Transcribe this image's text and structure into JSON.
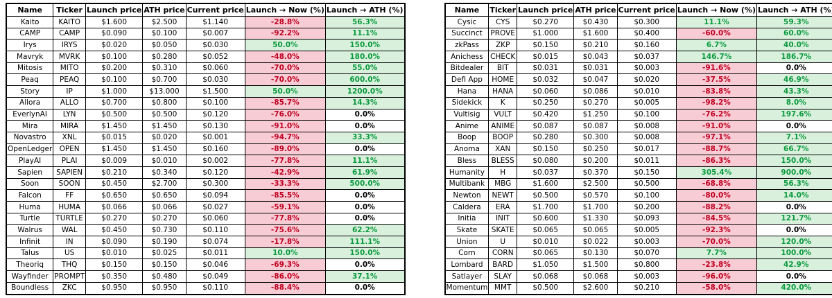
{
  "colors": {
    "negative_bg": "#f8ccd4",
    "negative_text": "#c00021",
    "positive_bg": "#d8f0dc",
    "positive_text": "#0b9a3e",
    "zero_text": "#000000",
    "border": "#000000"
  },
  "chart_data": [
    {
      "type": "table",
      "id": "left",
      "columns": [
        "Name",
        "Ticker",
        "Launch price",
        "ATH price",
        "Current price",
        "Launch → Now (%)",
        "Launch → ATH (%)"
      ],
      "rows": [
        [
          "Kaito",
          "KAITO",
          "$1.600",
          "$2.500",
          "$1.140",
          "-28.8%",
          "56.3%"
        ],
        [
          "CAMP",
          "CAMP",
          "$0.090",
          "$0.100",
          "$0.007",
          "-92.2%",
          "11.1%"
        ],
        [
          "Irys",
          "IRYS",
          "$0.020",
          "$0.050",
          "$0.030",
          "50.0%",
          "150.0%"
        ],
        [
          "Mavryk",
          "MVRK",
          "$0.100",
          "$0.280",
          "$0.052",
          "-48.0%",
          "180.0%"
        ],
        [
          "Mitosis",
          "MITO",
          "$0.200",
          "$0.310",
          "$0.060",
          "-70.0%",
          "55.0%"
        ],
        [
          "Peaq",
          "PEAQ",
          "$0.100",
          "$0.700",
          "$0.030",
          "-70.0%",
          "600.0%"
        ],
        [
          "Story",
          "IP",
          "$1.000",
          "$13.000",
          "$1.500",
          "50.0%",
          "1200.0%"
        ],
        [
          "Allora",
          "ALLO",
          "$0.700",
          "$0.800",
          "$0.100",
          "-85.7%",
          "14.3%"
        ],
        [
          "EverlynAI",
          "LYN",
          "$0.500",
          "$0.500",
          "$0.120",
          "-76.0%",
          "0.0%"
        ],
        [
          "Mira",
          "MIRA",
          "$1.450",
          "$1.450",
          "$0.130",
          "-91.0%",
          "0.0%"
        ],
        [
          "Novastro",
          "XNL",
          "$0.015",
          "$0.020",
          "$0.001",
          "-94.7%",
          "33.3%"
        ],
        [
          "OpenLedger",
          "OPEN",
          "$1.450",
          "$1.450",
          "$0.160",
          "-89.0%",
          "0.0%"
        ],
        [
          "PlayAI",
          "PLAI",
          "$0.009",
          "$0.010",
          "$0.002",
          "-77.8%",
          "11.1%"
        ],
        [
          "Sapien",
          "SAPIEN",
          "$0.210",
          "$0.340",
          "$0.120",
          "-42.9%",
          "61.9%"
        ],
        [
          "Soon",
          "SOON",
          "$0.450",
          "$2.700",
          "$0.300",
          "-33.3%",
          "500.0%"
        ],
        [
          "Falcon",
          "FF",
          "$0.650",
          "$0.650",
          "$0.094",
          "-85.5%",
          "0.0%"
        ],
        [
          "Huma",
          "HUMA",
          "$0.066",
          "$0.066",
          "$0.027",
          "-59.1%",
          "0.0%"
        ],
        [
          "Turtle",
          "TURTLE",
          "$0.270",
          "$0.270",
          "$0.060",
          "-77.8%",
          "0.0%"
        ],
        [
          "Walrus",
          "WAL",
          "$0.450",
          "$0.730",
          "$0.110",
          "-75.6%",
          "62.2%"
        ],
        [
          "Infinit",
          "IN",
          "$0.090",
          "$0.190",
          "$0.074",
          "-17.8%",
          "111.1%"
        ],
        [
          "Talus",
          "US",
          "$0.010",
          "$0.025",
          "$0.011",
          "10.0%",
          "150.0%"
        ],
        [
          "Theoriq",
          "THQ",
          "$0.150",
          "$0.150",
          "$0.046",
          "-69.3%",
          "0.0%"
        ],
        [
          "Wayfinder",
          "PROMPT",
          "$0.350",
          "$0.480",
          "$0.049",
          "-86.0%",
          "37.1%"
        ],
        [
          "Boundless",
          "ZKC",
          "$0.950",
          "$0.950",
          "$0.110",
          "-88.4%",
          "0.0%"
        ]
      ]
    },
    {
      "type": "table",
      "id": "right",
      "columns": [
        "Name",
        "Ticker",
        "Launch price",
        "ATH price",
        "Current price",
        "Launch → Now (%)",
        "Launch → ATH (%)"
      ],
      "rows": [
        [
          "Cysic",
          "CYS",
          "$0.270",
          "$0.430",
          "$0.300",
          "11.1%",
          "59.3%"
        ],
        [
          "Succinct",
          "PROVE",
          "$1.000",
          "$1.600",
          "$0.400",
          "-60.0%",
          "60.0%"
        ],
        [
          "zkPass",
          "ZKP",
          "$0.150",
          "$0.210",
          "$0.160",
          "6.7%",
          "40.0%"
        ],
        [
          "Anichess",
          "CHECK",
          "$0.015",
          "$0.043",
          "$0.037",
          "146.7%",
          "186.7%"
        ],
        [
          "Bitdealer",
          "BIT",
          "$0.031",
          "$0.031",
          "$0.003",
          "-91.6%",
          "0.0%"
        ],
        [
          "Defi App",
          "HOME",
          "$0.032",
          "$0.047",
          "$0.020",
          "-37.5%",
          "46.9%"
        ],
        [
          "Hana",
          "HANA",
          "$0.060",
          "$0.086",
          "$0.010",
          "-83.8%",
          "43.3%"
        ],
        [
          "Sidekick",
          "K",
          "$0.250",
          "$0.270",
          "$0.005",
          "-98.2%",
          "8.0%"
        ],
        [
          "Vultisig",
          "VULT",
          "$0.420",
          "$1.250",
          "$0.100",
          "-76.2%",
          "197.6%"
        ],
        [
          "Anime",
          "ANIME",
          "$0.087",
          "$0.087",
          "$0.008",
          "-91.0%",
          "0.0%"
        ],
        [
          "Boop",
          "BOOP",
          "$0.280",
          "$0.300",
          "$0.008",
          "-97.1%",
          "7.1%"
        ],
        [
          "Anoma",
          "XAN",
          "$0.150",
          "$0.250",
          "$0.017",
          "-88.7%",
          "66.7%"
        ],
        [
          "Bless",
          "BLESS",
          "$0.080",
          "$0.200",
          "$0.011",
          "-86.3%",
          "150.0%"
        ],
        [
          "Humanity",
          "H",
          "$0.037",
          "$0.370",
          "$0.150",
          "305.4%",
          "900.0%"
        ],
        [
          "Multibank",
          "MBG",
          "$1.600",
          "$2.500",
          "$0.500",
          "-68.8%",
          "56.3%"
        ],
        [
          "Newton",
          "NEWT",
          "$0.500",
          "$0.570",
          "$0.100",
          "-80.0%",
          "14.0%"
        ],
        [
          "Caldera",
          "ERA",
          "$1.700",
          "$1.700",
          "$0.200",
          "-88.2%",
          "0.0%"
        ],
        [
          "Initia",
          "INIT",
          "$0.600",
          "$1.330",
          "$0.093",
          "-84.5%",
          "121.7%"
        ],
        [
          "Skate",
          "SKATE",
          "$0.065",
          "$0.065",
          "$0.005",
          "-92.3%",
          "0.0%"
        ],
        [
          "Union",
          "U",
          "$0.010",
          "$0.022",
          "$0.003",
          "-70.0%",
          "120.0%"
        ],
        [
          "Corn",
          "CORN",
          "$0.065",
          "$0.130",
          "$0.070",
          "7.7%",
          "100.0%"
        ],
        [
          "Lombard",
          "BARD",
          "$1.050",
          "$1.500",
          "$0.800",
          "-23.8%",
          "42.9%"
        ],
        [
          "Satlayer",
          "SLAY",
          "$0.068",
          "$0.068",
          "$0.003",
          "-96.0%",
          "0.0%"
        ],
        [
          "Momentum",
          "MMT",
          "$0.500",
          "$2.600",
          "$0.210",
          "-58.0%",
          "420.0%"
        ]
      ]
    }
  ]
}
